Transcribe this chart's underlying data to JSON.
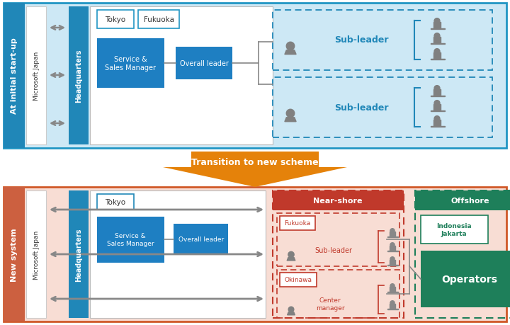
{
  "fig_width": 7.2,
  "fig_height": 4.6,
  "dpi": 100,
  "bg_color": "#ffffff",
  "top_panel_bg": "#cde8f5",
  "top_panel_border": "#2196c4",
  "top_panel_label": "At initial start-up",
  "top_panel_label_bg": "#2087b8",
  "bottom_panel_bg": "#f8ddd4",
  "bottom_panel_border": "#d05828",
  "bottom_panel_label": "New system",
  "bottom_panel_label_bg": "#cc6040",
  "hq_bg": "#2087b8",
  "hq_text": "#ffffff",
  "blue_box": "#1e7fc2",
  "white": "#ffffff",
  "gray_arrow": "#888888",
  "transition_color": "#e5820a",
  "transition_text": "Transition to new scheme",
  "nearshore_color": "#c0392b",
  "offshore_color": "#1e7f5a",
  "operators_color": "#1e7f5a",
  "sub_leader_blue": "#2087b8",
  "sub_leader_red": "#c0392b",
  "icon_gray": "#808080"
}
